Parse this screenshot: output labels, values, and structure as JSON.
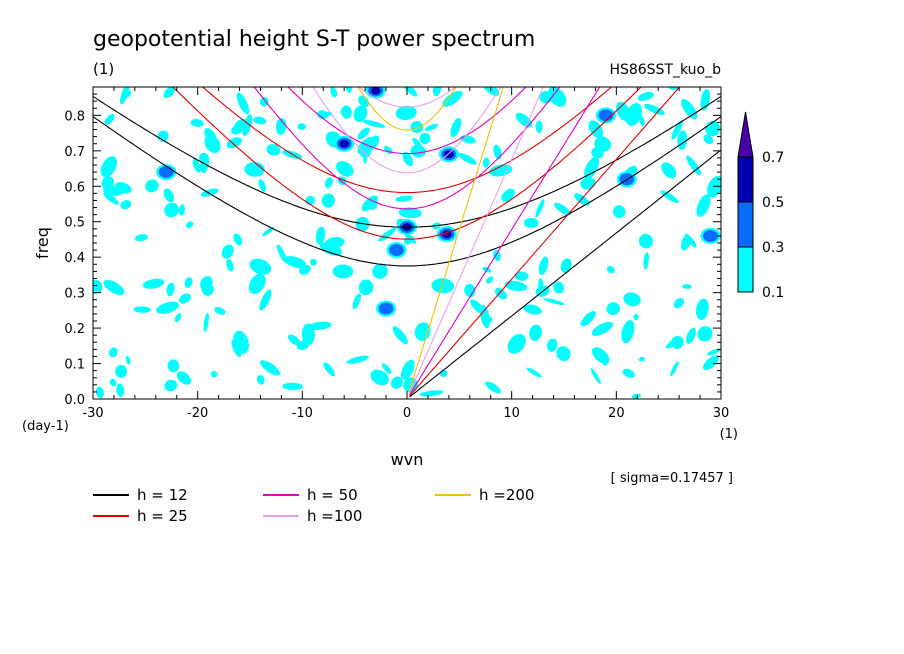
{
  "chart_data": {
    "type": "heatmap",
    "title": "geopotential height S-T power spectrum",
    "subtitle_left": "(1)",
    "subtitle_right": "HS86SST_kuo_b",
    "xlabel": "wvn",
    "ylabel": "freq",
    "x_unit": "(1)",
    "y_unit": "(day-1)",
    "xlim": [
      -30,
      30
    ],
    "ylim": [
      0,
      0.88
    ],
    "x_ticks": [
      -30,
      -20,
      -10,
      0,
      10,
      20,
      30
    ],
    "x_tick_labels": [
      "-30",
      "-20",
      "-10",
      "0",
      "10",
      "20",
      "30"
    ],
    "y_ticks": [
      0,
      0.1,
      0.2,
      0.3,
      0.4,
      0.5,
      0.6,
      0.7,
      0.8
    ],
    "y_tick_labels": [
      "0.0",
      "0.1",
      "0.2",
      "0.3",
      "0.4",
      "0.5",
      "0.6",
      "0.7",
      "0.8"
    ],
    "sigma_text": "[ sigma=0.17457 ]",
    "colorbar": {
      "levels": [
        0.1,
        0.3,
        0.5,
        0.7
      ],
      "labels": [
        "0.1",
        "0.3",
        "0.5",
        "0.7"
      ],
      "colors": [
        "#00ffff",
        "#0a6cff",
        "#0000b0",
        "#4a00a8"
      ]
    },
    "dispersion_curves": [
      {
        "name": "h = 12",
        "h": 12,
        "color": "#000000"
      },
      {
        "name": "h = 25",
        "h": 25,
        "color": "#e00000"
      },
      {
        "name": "h = 50",
        "h": 50,
        "color": "#e000c0"
      },
      {
        "name": "h =100",
        "h": 100,
        "color": "#e8a0e8"
      },
      {
        "name": "h =200",
        "h": 200,
        "color": "#f0c000"
      }
    ],
    "high_power_spots": [
      {
        "x": 3.8,
        "y": 0.465,
        "level": 0.7
      },
      {
        "x": -3,
        "y": 0.87,
        "level": 0.5
      },
      {
        "x": -6,
        "y": 0.72,
        "level": 0.5
      },
      {
        "x": 0,
        "y": 0.485,
        "level": 0.5
      },
      {
        "x": -1,
        "y": 0.42,
        "level": 0.3
      },
      {
        "x": 4,
        "y": 0.69,
        "level": 0.5
      },
      {
        "x": -2,
        "y": 0.255,
        "level": 0.3
      },
      {
        "x": 29,
        "y": 0.46,
        "level": 0.3
      },
      {
        "x": 19,
        "y": 0.8,
        "level": 0.3
      },
      {
        "x": -23,
        "y": 0.64,
        "level": 0.3
      },
      {
        "x": 21,
        "y": 0.62,
        "level": 0.3
      }
    ]
  }
}
